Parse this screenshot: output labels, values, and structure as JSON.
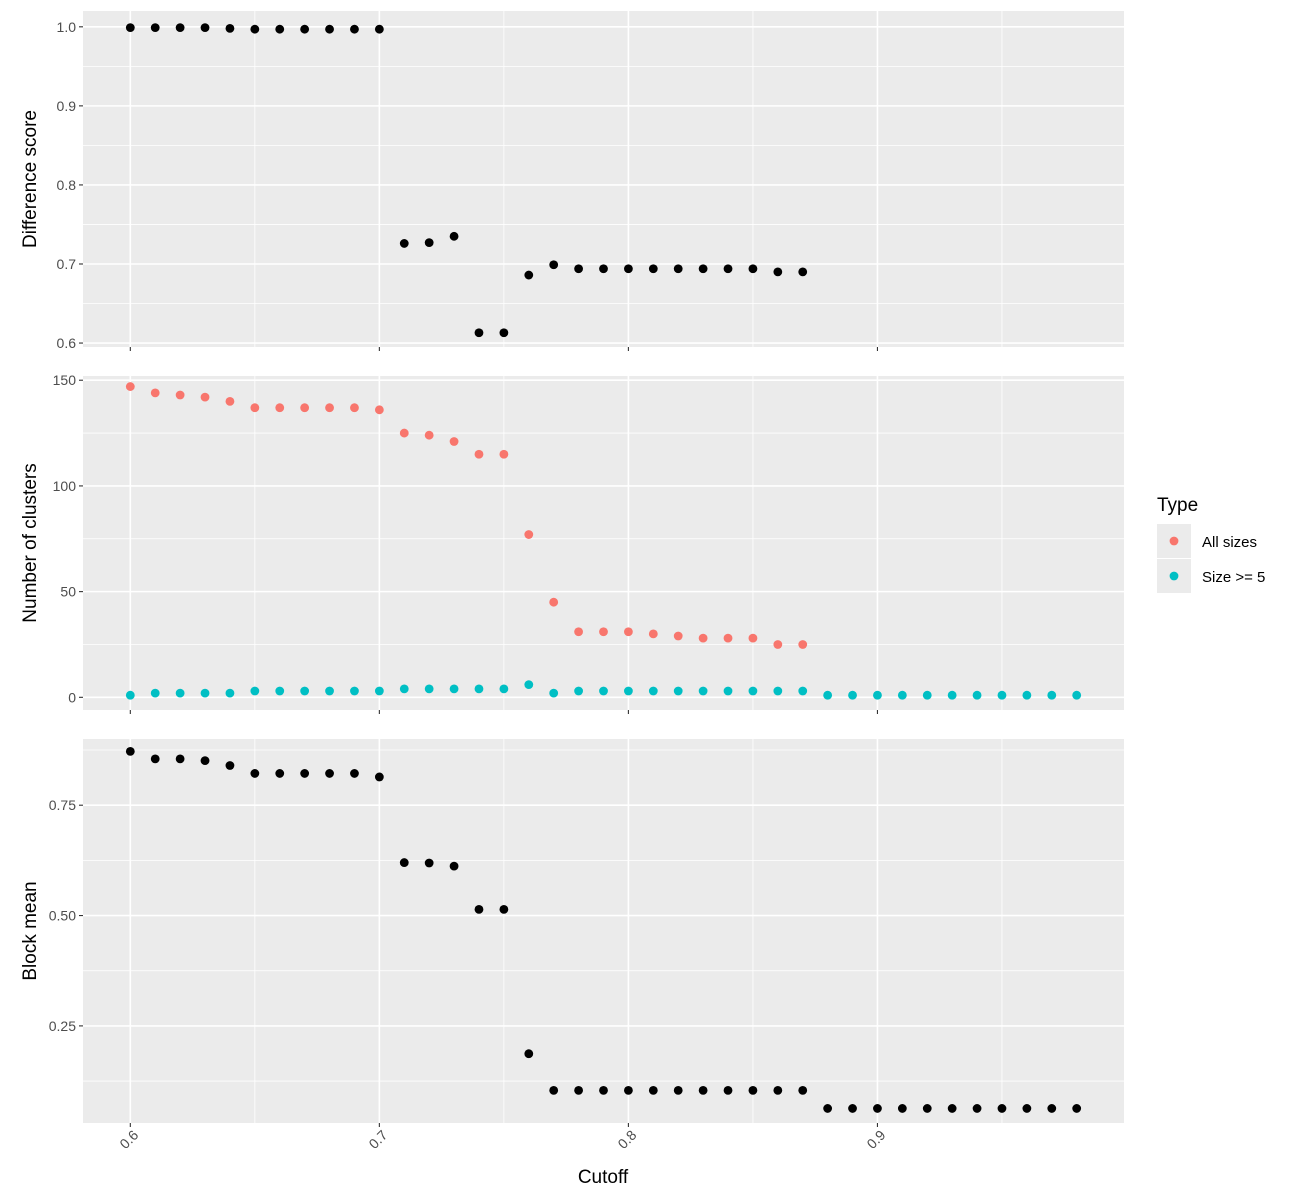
{
  "chart_data": {
    "type": "scatter",
    "xlabel": "Cutoff",
    "xlim": [
      0.581,
      0.999
    ],
    "x_ticks": [
      0.6,
      0.7,
      0.8,
      0.9
    ],
    "x_tick_labels": [
      "0.6",
      "0.7",
      "0.8",
      "0.9"
    ],
    "grid": true,
    "legend": {
      "title": "Type",
      "placement": "right",
      "entries": [
        {
          "label": "All sizes",
          "color": "#F8766D"
        },
        {
          "label": "Size >= 5",
          "color": "#00BFC4"
        }
      ]
    },
    "panels": [
      {
        "ylabel": "Difference score",
        "ylim": [
          0.595,
          1.02
        ],
        "y_ticks": [
          0.6,
          0.7,
          0.8,
          0.9,
          1.0
        ],
        "y_tick_labels": [
          "0.6",
          "0.7",
          "0.8",
          "0.9",
          "1.0"
        ],
        "series": [
          {
            "color": "#000000",
            "x": [
              0.6,
              0.61,
              0.62,
              0.63,
              0.64,
              0.65,
              0.66,
              0.67,
              0.68,
              0.69,
              0.7,
              0.71,
              0.72,
              0.73,
              0.74,
              0.75,
              0.76,
              0.77,
              0.78,
              0.79,
              0.8,
              0.81,
              0.82,
              0.83,
              0.84,
              0.85,
              0.86,
              0.87
            ],
            "values": [
              0.999,
              0.999,
              0.999,
              0.999,
              0.998,
              0.997,
              0.997,
              0.997,
              0.997,
              0.997,
              0.997,
              0.726,
              0.727,
              0.735,
              0.613,
              0.613,
              0.686,
              0.699,
              0.694,
              0.694,
              0.694,
              0.694,
              0.694,
              0.694,
              0.694,
              0.694,
              0.69,
              0.69
            ]
          }
        ]
      },
      {
        "ylabel": "Number of clusters",
        "ylim": [
          -6,
          152
        ],
        "y_ticks": [
          0,
          50,
          100,
          150
        ],
        "y_tick_labels": [
          "0",
          "50",
          "100",
          "150"
        ],
        "series": [
          {
            "name": "All sizes",
            "color": "#F8766D",
            "x": [
              0.6,
              0.61,
              0.62,
              0.63,
              0.64,
              0.65,
              0.66,
              0.67,
              0.68,
              0.69,
              0.7,
              0.71,
              0.72,
              0.73,
              0.74,
              0.75,
              0.76,
              0.77,
              0.78,
              0.79,
              0.8,
              0.81,
              0.82,
              0.83,
              0.84,
              0.85,
              0.86,
              0.87
            ],
            "values": [
              147,
              144,
              143,
              142,
              140,
              137,
              137,
              137,
              137,
              137,
              136,
              125,
              124,
              121,
              115,
              115,
              77,
              45,
              31,
              31,
              31,
              30,
              29,
              28,
              28,
              28,
              25,
              25
            ]
          },
          {
            "name": "Size >= 5",
            "color": "#00BFC4",
            "x": [
              0.6,
              0.61,
              0.62,
              0.63,
              0.64,
              0.65,
              0.66,
              0.67,
              0.68,
              0.69,
              0.7,
              0.71,
              0.72,
              0.73,
              0.74,
              0.75,
              0.76,
              0.77,
              0.78,
              0.79,
              0.8,
              0.81,
              0.82,
              0.83,
              0.84,
              0.85,
              0.86,
              0.87,
              0.88,
              0.89,
              0.9,
              0.91,
              0.92,
              0.93,
              0.94,
              0.95,
              0.96,
              0.97,
              0.98
            ],
            "values": [
              1,
              2,
              2,
              2,
              2,
              3,
              3,
              3,
              3,
              3,
              3,
              4,
              4,
              4,
              4,
              4,
              6,
              2,
              3,
              3,
              3,
              3,
              3,
              3,
              3,
              3,
              3,
              3,
              1,
              1,
              1,
              1,
              1,
              1,
              1,
              1,
              1,
              1,
              1
            ]
          }
        ]
      },
      {
        "ylabel": "Block mean",
        "ylim": [
          0.03,
          0.9
        ],
        "y_ticks": [
          0.25,
          0.5,
          0.75
        ],
        "y_tick_labels": [
          "0.25",
          "0.50",
          "0.75"
        ],
        "series": [
          {
            "color": "#000000",
            "x": [
              0.6,
              0.61,
              0.62,
              0.63,
              0.64,
              0.65,
              0.66,
              0.67,
              0.68,
              0.69,
              0.7,
              0.71,
              0.72,
              0.73,
              0.74,
              0.75,
              0.76,
              0.77,
              0.78,
              0.79,
              0.8,
              0.81,
              0.82,
              0.83,
              0.84,
              0.85,
              0.86,
              0.87,
              0.88,
              0.89,
              0.9,
              0.91,
              0.92,
              0.93,
              0.94,
              0.95,
              0.96,
              0.97,
              0.98
            ],
            "values": [
              0.872,
              0.855,
              0.855,
              0.851,
              0.84,
              0.822,
              0.822,
              0.822,
              0.822,
              0.822,
              0.814,
              0.62,
              0.619,
              0.612,
              0.514,
              0.514,
              0.187,
              0.104,
              0.104,
              0.104,
              0.104,
              0.104,
              0.104,
              0.104,
              0.104,
              0.104,
              0.104,
              0.104,
              0.063,
              0.063,
              0.063,
              0.063,
              0.063,
              0.063,
              0.063,
              0.063,
              0.063,
              0.063,
              0.063
            ]
          }
        ]
      }
    ]
  }
}
